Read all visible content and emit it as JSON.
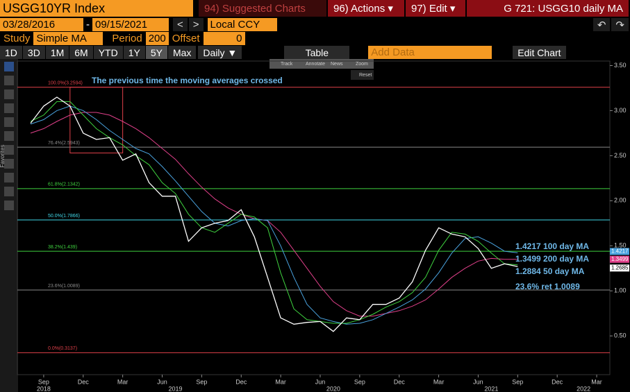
{
  "toolbar": {
    "security": "USGG10YR Index",
    "suggested": "94) Suggested Charts",
    "actions": "96) Actions ▾",
    "edit": "97) Edit ▾",
    "chart_name": "G 721: USGG10 daily MA",
    "start_date": "03/28/2016",
    "end_date": "09/15/2021",
    "currency": "Local CCY",
    "study_label": "Study",
    "study": "Simple MA",
    "period_label": "Period",
    "period": "200",
    "offset_label": "Offset",
    "offset": "0",
    "ranges": [
      "1D",
      "3D",
      "1M",
      "6M",
      "YTD",
      "1Y",
      "5Y",
      "Max"
    ],
    "frequency": "Daily ▼",
    "table": "Table",
    "add_data": "Add Data",
    "edit_chart": "Edit Chart",
    "mini_tools": [
      "Track",
      "Annotate",
      "News",
      "Zoom"
    ],
    "reset": "Reset",
    "favorites": "Favorites"
  },
  "chart_data": {
    "type": "line",
    "x": [
      "2018-08",
      "2018-09",
      "2018-10",
      "2018-11",
      "2018-12",
      "2019-01",
      "2019-02",
      "2019-03",
      "2019-04",
      "2019-05",
      "2019-06",
      "2019-07",
      "2019-08",
      "2019-09",
      "2019-10",
      "2019-11",
      "2019-12",
      "2020-01",
      "2020-02",
      "2020-03",
      "2020-04",
      "2020-05",
      "2020-06",
      "2020-07",
      "2020-08",
      "2020-09",
      "2020-10",
      "2020-11",
      "2020-12",
      "2021-01",
      "2021-02",
      "2021-03",
      "2021-04",
      "2021-05",
      "2021-06",
      "2021-07",
      "2021-08",
      "2021-09"
    ],
    "series": [
      {
        "name": "USGG10YR",
        "color": "#ffffff",
        "values": [
          2.86,
          3.05,
          3.15,
          3.05,
          2.75,
          2.68,
          2.7,
          2.45,
          2.52,
          2.2,
          2.05,
          2.05,
          1.55,
          1.7,
          1.75,
          1.78,
          1.9,
          1.6,
          1.15,
          0.7,
          0.63,
          0.65,
          0.66,
          0.55,
          0.7,
          0.68,
          0.85,
          0.85,
          0.92,
          1.1,
          1.45,
          1.7,
          1.63,
          1.6,
          1.47,
          1.25,
          1.3,
          1.2685
        ]
      },
      {
        "name": "50 day MA",
        "color": "#3fd23f",
        "values": [
          2.88,
          2.95,
          3.1,
          3.1,
          2.95,
          2.8,
          2.7,
          2.62,
          2.5,
          2.4,
          2.2,
          2.08,
          1.85,
          1.7,
          1.65,
          1.75,
          1.85,
          1.82,
          1.7,
          1.2,
          0.8,
          0.68,
          0.66,
          0.64,
          0.64,
          0.68,
          0.74,
          0.82,
          0.88,
          0.98,
          1.15,
          1.45,
          1.65,
          1.63,
          1.55,
          1.42,
          1.3,
          1.2884
        ]
      },
      {
        "name": "100 day MA",
        "color": "#4aa3df",
        "values": [
          2.85,
          2.9,
          3.0,
          3.05,
          3.0,
          2.9,
          2.78,
          2.68,
          2.58,
          2.52,
          2.38,
          2.22,
          2.05,
          1.88,
          1.75,
          1.72,
          1.78,
          1.8,
          1.78,
          1.5,
          1.15,
          0.85,
          0.7,
          0.66,
          0.63,
          0.64,
          0.68,
          0.75,
          0.82,
          0.9,
          1.02,
          1.2,
          1.42,
          1.58,
          1.6,
          1.53,
          1.44,
          1.4217
        ]
      },
      {
        "name": "200 day MA",
        "color": "#e0408a",
        "values": [
          2.75,
          2.8,
          2.88,
          2.95,
          2.98,
          2.98,
          2.95,
          2.88,
          2.8,
          2.7,
          2.58,
          2.46,
          2.3,
          2.15,
          2.02,
          1.92,
          1.85,
          1.8,
          1.78,
          1.65,
          1.45,
          1.25,
          1.05,
          0.88,
          0.78,
          0.72,
          0.72,
          0.75,
          0.78,
          0.83,
          0.9,
          1.02,
          1.15,
          1.25,
          1.33,
          1.36,
          1.35,
          1.3499
        ]
      }
    ],
    "xlim": [
      "2018-07",
      "2022-04"
    ],
    "xticks": [
      {
        "value": "2018-09",
        "label": "Sep"
      },
      {
        "value": "2018-12",
        "label": "Dec"
      },
      {
        "value": "2019-03",
        "label": "Mar"
      },
      {
        "value": "2019-06",
        "label": "Jun"
      },
      {
        "value": "2019-09",
        "label": "Sep"
      },
      {
        "value": "2019-12",
        "label": "Dec"
      },
      {
        "value": "2020-03",
        "label": "Mar"
      },
      {
        "value": "2020-06",
        "label": "Jun"
      },
      {
        "value": "2020-09",
        "label": "Sep"
      },
      {
        "value": "2020-12",
        "label": "Dec"
      },
      {
        "value": "2021-03",
        "label": "Mar"
      },
      {
        "value": "2021-06",
        "label": "Jun"
      },
      {
        "value": "2021-09",
        "label": "Sep"
      },
      {
        "value": "2021-12",
        "label": "Dec"
      },
      {
        "value": "2022-03",
        "label": "Mar"
      }
    ],
    "year_labels": [
      {
        "value": "2018-09",
        "label": "2018"
      },
      {
        "value": "2019-07",
        "label": "2019"
      },
      {
        "value": "2020-07",
        "label": "2020"
      },
      {
        "value": "2021-07",
        "label": "2021"
      },
      {
        "value": "2022-02",
        "label": "2022"
      }
    ],
    "ylim": [
      0.07,
      3.55
    ],
    "yticks": [
      {
        "value": 0.5,
        "label": "0.50"
      },
      {
        "value": 1,
        "label": "1.00"
      },
      {
        "value": 1.5,
        "label": "1.50"
      },
      {
        "value": 2,
        "label": "2.00"
      },
      {
        "value": 2.5,
        "label": "2.50"
      },
      {
        "value": 3,
        "label": "3.00"
      },
      {
        "value": 3.5,
        "label": "3.50"
      }
    ],
    "fib_levels": [
      {
        "value": 3.2594,
        "label": "100.0%(3.2594)",
        "color": "#e0404a"
      },
      {
        "value": 2.5943,
        "label": "76.4%(2.5943)",
        "color": "#8a8a8a"
      },
      {
        "value": 2.1342,
        "label": "61.8%(2.1342)",
        "color": "#3fd23f"
      },
      {
        "value": 1.7866,
        "label": "50.0%(1.7866)",
        "color": "#40d8e8"
      },
      {
        "value": 1.439,
        "label": "38.2%(1.439)",
        "color": "#3fd23f"
      },
      {
        "value": 1.0089,
        "label": "23.6%(1.0089)",
        "color": "#8a8a8a"
      },
      {
        "value": 0.3137,
        "label": "0.0%(0.3137)",
        "color": "#e0404a"
      }
    ],
    "annotation": "The previous time the moving averages crossed",
    "highlight_box": {
      "x": [
        "2018-11",
        "2019-03"
      ],
      "y": [
        2.53,
        3.26
      ],
      "color": "#e0404a"
    },
    "ma_labels": [
      "1.4217 100 day MA",
      "1.3499 200 day MA",
      "1.2884 50 day MA",
      "23.6% ret 1.0089"
    ],
    "last_values": [
      {
        "value": 1.4217,
        "label": "1.4217",
        "color": "#4aa3df"
      },
      {
        "value": 1.3499,
        "label": "1.3499",
        "color": "#e0408a"
      },
      {
        "value": 1.2685,
        "label": "1.2685",
        "color": "#ffffff"
      }
    ]
  }
}
